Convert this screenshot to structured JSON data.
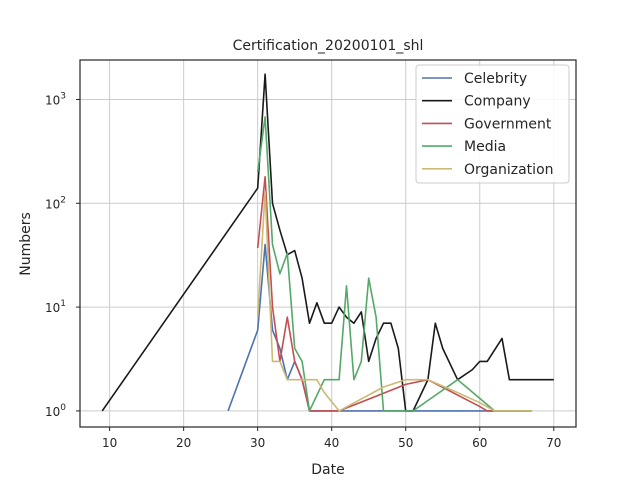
{
  "chart_data": {
    "type": "line",
    "title": "Certification_20200101_shl",
    "xlabel": "Date",
    "ylabel": "Numbers",
    "yscale": "log",
    "xlim": [
      6,
      73
    ],
    "ylim": [
      0.7,
      2400
    ],
    "x_ticks": [
      10,
      20,
      30,
      40,
      50,
      60,
      70
    ],
    "y_ticks": [
      {
        "value": 1,
        "label": "10^0"
      },
      {
        "value": 10,
        "label": "10^1"
      },
      {
        "value": 100,
        "label": "10^2"
      },
      {
        "value": 1000,
        "label": "10^3"
      }
    ],
    "grid": true,
    "legend_position": "top-right",
    "series": [
      {
        "name": "Celebrity",
        "color": "#4c72b0",
        "points": [
          [
            26,
            1
          ],
          [
            30,
            6
          ],
          [
            31,
            40
          ],
          [
            32,
            6
          ],
          [
            33,
            4
          ],
          [
            34,
            2
          ],
          [
            35,
            3
          ],
          [
            36,
            2
          ],
          [
            37,
            1
          ],
          [
            40,
            1
          ],
          [
            50,
            1
          ],
          [
            60,
            1
          ],
          [
            67,
            1
          ]
        ]
      },
      {
        "name": "Company",
        "color": "#1a1a1a",
        "points": [
          [
            9,
            1
          ],
          [
            30,
            140
          ],
          [
            31,
            1750
          ],
          [
            32,
            100
          ],
          [
            33,
            55
          ],
          [
            34,
            32
          ],
          [
            35,
            35
          ],
          [
            36,
            19
          ],
          [
            37,
            7
          ],
          [
            38,
            11
          ],
          [
            39,
            7
          ],
          [
            40,
            7
          ],
          [
            41,
            10
          ],
          [
            42,
            8
          ],
          [
            43,
            7
          ],
          [
            44,
            9
          ],
          [
            45,
            3
          ],
          [
            46,
            5
          ],
          [
            47,
            7
          ],
          [
            48,
            7
          ],
          [
            49,
            4
          ],
          [
            50,
            1
          ],
          [
            51,
            1
          ],
          [
            53,
            2
          ],
          [
            54,
            7
          ],
          [
            55,
            4
          ],
          [
            57,
            2
          ],
          [
            59,
            2.5
          ],
          [
            60,
            3
          ],
          [
            61,
            3
          ],
          [
            63,
            5
          ],
          [
            64,
            2
          ],
          [
            70,
            2
          ]
        ]
      },
      {
        "name": "Government",
        "color": "#c44e52",
        "points": [
          [
            30,
            37
          ],
          [
            31,
            180
          ],
          [
            32,
            10
          ],
          [
            33,
            3
          ],
          [
            34,
            8
          ],
          [
            35,
            3
          ],
          [
            36,
            2
          ],
          [
            37,
            1
          ],
          [
            40,
            1
          ],
          [
            41,
            1
          ],
          [
            50,
            1.8
          ],
          [
            53,
            2
          ],
          [
            60,
            1.1
          ],
          [
            61,
            1
          ],
          [
            67,
            1
          ]
        ]
      },
      {
        "name": "Media",
        "color": "#55a868",
        "points": [
          [
            30,
            200
          ],
          [
            31,
            680
          ],
          [
            32,
            40
          ],
          [
            33,
            21
          ],
          [
            34,
            33
          ],
          [
            35,
            4
          ],
          [
            36,
            3
          ],
          [
            37,
            1
          ],
          [
            39,
            2
          ],
          [
            40,
            2
          ],
          [
            41,
            2
          ],
          [
            42,
            16
          ],
          [
            43,
            2
          ],
          [
            44,
            3
          ],
          [
            45,
            19
          ],
          [
            46,
            8
          ],
          [
            47,
            1
          ],
          [
            51,
            1
          ],
          [
            57,
            2
          ],
          [
            62,
            1
          ],
          [
            67,
            1
          ]
        ]
      },
      {
        "name": "Organization",
        "color": "#ccb974",
        "points": [
          [
            30,
            8
          ],
          [
            31,
            130
          ],
          [
            32,
            3
          ],
          [
            33,
            3
          ],
          [
            34,
            2
          ],
          [
            35,
            2
          ],
          [
            36,
            2
          ],
          [
            37,
            2
          ],
          [
            38,
            2
          ],
          [
            39,
            1.5
          ],
          [
            41,
            1
          ],
          [
            47,
            1.7
          ],
          [
            50,
            2
          ],
          [
            53,
            2
          ],
          [
            57,
            1.5
          ],
          [
            60,
            1.2
          ],
          [
            62,
            1
          ],
          [
            67,
            1
          ]
        ]
      }
    ]
  }
}
